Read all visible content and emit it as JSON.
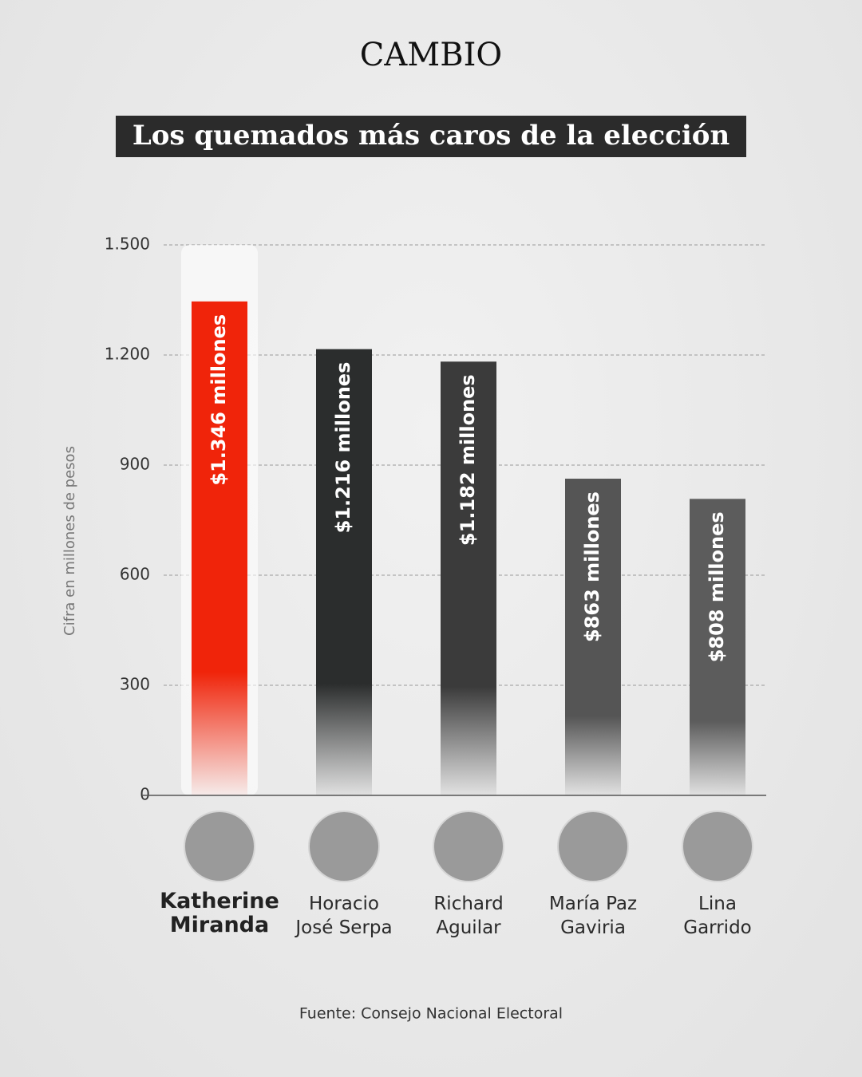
{
  "chart_data": {
    "type": "bar",
    "brand": "CAMBIO",
    "title": "Los quemados más caros de la elección",
    "y_label": "Cifra en millones de pesos",
    "source": "Fuente: Consejo Nacional Electoral",
    "categories": [
      "Katherine\nMiranda",
      "Horacio\nJosé Serpa",
      "Richard\nAguilar",
      "María Paz\nGaviria",
      "Lina\nGarrido"
    ],
    "values": [
      1346,
      1216,
      1182,
      863,
      808
    ],
    "value_labels": [
      "$1.346 millones",
      "$1.216 millones",
      "$1.182 millones",
      "$863 millones",
      "$808 millones"
    ],
    "colors": [
      "#f0240a",
      "#2b2d2d",
      "#3b3b3b",
      "#555555",
      "#5c5c5c"
    ],
    "ylim": [
      0,
      1500
    ],
    "yticks": [
      0,
      300,
      600,
      900,
      {
        "value": 1200,
        "label": "1.200"
      },
      {
        "value": 1500,
        "label": "1.500"
      }
    ],
    "grid": true
  }
}
